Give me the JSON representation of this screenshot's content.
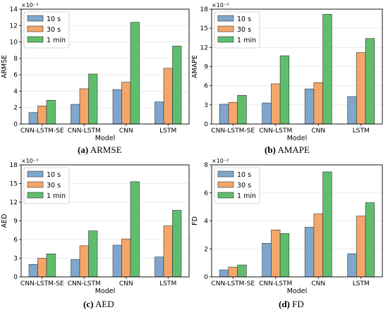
{
  "colors": {
    "10 s": "#7fa7cd",
    "30 s": "#f4a66a",
    "1 min": "#5fbe6e",
    "edge": "#333333"
  },
  "chart_data": [
    {
      "type": "bar",
      "id": "a",
      "categories": [
        "CNN-LSTM-SE",
        "CNN-LSTM",
        "CNN",
        "LSTM"
      ],
      "series": [
        {
          "name": "10 s",
          "values": [
            1.4,
            2.4,
            4.2,
            2.7
          ]
        },
        {
          "name": "30 s",
          "values": [
            2.2,
            4.3,
            5.1,
            6.8
          ]
        },
        {
          "name": "1 min",
          "values": [
            2.9,
            6.1,
            12.4,
            9.5
          ]
        }
      ],
      "xlabel": "Model",
      "ylabel": "ARMSE",
      "scale_label": "×10⁻³",
      "ylim": [
        0,
        14
      ],
      "yticks": [
        0,
        2,
        4,
        6,
        8,
        10,
        12,
        14
      ],
      "grid": true,
      "legend": "top-left",
      "caption_label": "(a)",
      "caption_text": "ARMSE"
    },
    {
      "type": "bar",
      "id": "b",
      "categories": [
        "CNN-LSTM-SE",
        "CNN-LSTM",
        "CNN",
        "LSTM"
      ],
      "series": [
        {
          "name": "10 s",
          "values": [
            3.1,
            3.3,
            5.5,
            4.3
          ]
        },
        {
          "name": "30 s",
          "values": [
            3.4,
            6.3,
            6.5,
            11.2
          ]
        },
        {
          "name": "1 min",
          "values": [
            4.5,
            10.7,
            17.2,
            13.4
          ]
        }
      ],
      "xlabel": "Model",
      "ylabel": "AMAPE",
      "scale_label": "×10⁻³",
      "ylim": [
        0,
        18
      ],
      "yticks": [
        0,
        3,
        6,
        9,
        12,
        15,
        18
      ],
      "grid": true,
      "legend": "top-left",
      "caption_label": "(b)",
      "caption_text": "AMAPE"
    },
    {
      "type": "bar",
      "id": "c",
      "categories": [
        "CNN-LSTM-SE",
        "CNN-LSTM",
        "CNN",
        "LSTM"
      ],
      "series": [
        {
          "name": "10 s",
          "values": [
            2.0,
            2.8,
            5.1,
            3.2
          ]
        },
        {
          "name": "30 s",
          "values": [
            3.0,
            5.0,
            6.1,
            8.2
          ]
        },
        {
          "name": "1 min",
          "values": [
            3.7,
            7.4,
            15.3,
            10.7
          ]
        }
      ],
      "xlabel": "Model",
      "ylabel": "AED",
      "scale_label": "×10⁻³",
      "ylim": [
        0,
        18
      ],
      "yticks": [
        0,
        3,
        6,
        9,
        12,
        15,
        18
      ],
      "grid": true,
      "legend": "top-left",
      "caption_label": "(c)",
      "caption_text": "AED"
    },
    {
      "type": "bar",
      "id": "d",
      "categories": [
        "CNN-LSTM-SE",
        "CNN-LSTM",
        "CNN",
        "LSTM"
      ],
      "series": [
        {
          "name": "10 s",
          "values": [
            0.5,
            2.4,
            3.55,
            1.65
          ]
        },
        {
          "name": "30 s",
          "values": [
            0.7,
            3.35,
            4.5,
            4.35
          ]
        },
        {
          "name": "1 min",
          "values": [
            0.85,
            3.1,
            7.5,
            5.3
          ]
        }
      ],
      "xlabel": "Model",
      "ylabel": "FD",
      "scale_label": "×10⁻²",
      "ylim": [
        0,
        8
      ],
      "yticks": [
        0,
        2,
        4,
        6,
        8
      ],
      "grid": true,
      "legend": "top-left",
      "caption_label": "(d)",
      "caption_text": "FD"
    }
  ]
}
